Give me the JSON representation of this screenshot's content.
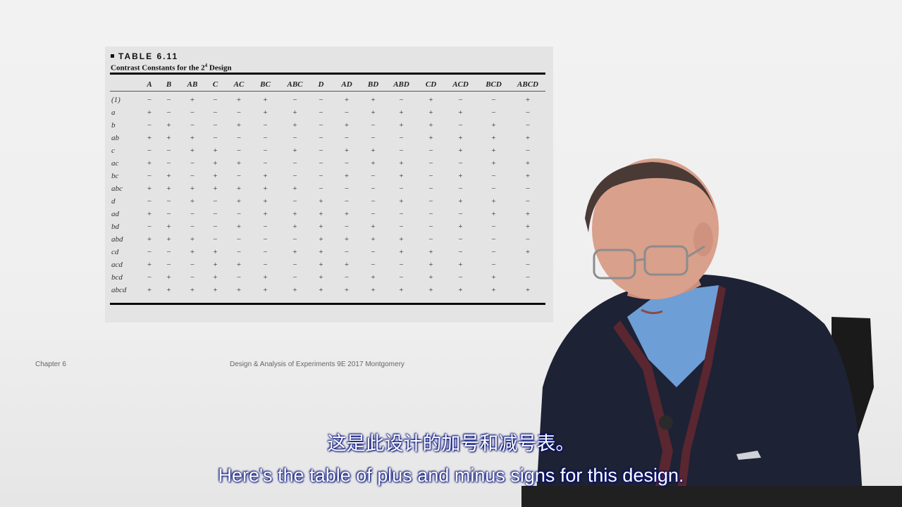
{
  "slide": {
    "table_label": "TABLE 6.11",
    "caption_prefix": "Contrast Constants for the 2",
    "caption_sup": "4",
    "caption_suffix": " Design",
    "columns": [
      "A",
      "B",
      "AB",
      "C",
      "AC",
      "BC",
      "ABC",
      "D",
      "AD",
      "BD",
      "ABD",
      "CD",
      "ACD",
      "BCD",
      "ABCD"
    ],
    "rows": [
      {
        "label": "(1)",
        "signs": [
          "−",
          "−",
          "+",
          "−",
          "+",
          "+",
          "−",
          "−",
          "+",
          "+",
          "−",
          "+",
          "−",
          "−",
          "+"
        ]
      },
      {
        "label": "a",
        "signs": [
          "+",
          "−",
          "−",
          "−",
          "−",
          "+",
          "+",
          "−",
          "−",
          "+",
          "+",
          "+",
          "+",
          "−",
          "−"
        ]
      },
      {
        "label": "b",
        "signs": [
          "−",
          "+",
          "−",
          "−",
          "+",
          "−",
          "+",
          "−",
          "+",
          "−",
          "+",
          "+",
          "−",
          "+",
          "−"
        ]
      },
      {
        "label": "ab",
        "signs": [
          "+",
          "+",
          "+",
          "−",
          "−",
          "−",
          "−",
          "−",
          "−",
          "−",
          "−",
          "+",
          "+",
          "+",
          "+"
        ]
      },
      {
        "label": "c",
        "signs": [
          "−",
          "−",
          "+",
          "+",
          "−",
          "−",
          "+",
          "−",
          "+",
          "+",
          "−",
          "−",
          "+",
          "+",
          "−"
        ]
      },
      {
        "label": "ac",
        "signs": [
          "+",
          "−",
          "−",
          "+",
          "+",
          "−",
          "−",
          "−",
          "−",
          "+",
          "+",
          "−",
          "−",
          "+",
          "+"
        ]
      },
      {
        "label": "bc",
        "signs": [
          "−",
          "+",
          "−",
          "+",
          "−",
          "+",
          "−",
          "−",
          "+",
          "−",
          "+",
          "−",
          "+",
          "−",
          "+"
        ]
      },
      {
        "label": "abc",
        "signs": [
          "+",
          "+",
          "+",
          "+",
          "+",
          "+",
          "+",
          "−",
          "−",
          "−",
          "−",
          "−",
          "−",
          "−",
          "−"
        ]
      },
      {
        "label": "d",
        "signs": [
          "−",
          "−",
          "+",
          "−",
          "+",
          "+",
          "−",
          "+",
          "−",
          "−",
          "+",
          "−",
          "+",
          "+",
          "−"
        ]
      },
      {
        "label": "ad",
        "signs": [
          "+",
          "−",
          "−",
          "−",
          "−",
          "+",
          "+",
          "+",
          "+",
          "−",
          "−",
          "−",
          "−",
          "+",
          "+"
        ]
      },
      {
        "label": "bd",
        "signs": [
          "−",
          "+",
          "−",
          "−",
          "+",
          "−",
          "+",
          "+",
          "−",
          "+",
          "−",
          "−",
          "+",
          "−",
          "+"
        ]
      },
      {
        "label": "abd",
        "signs": [
          "+",
          "+",
          "+",
          "−",
          "−",
          "−",
          "−",
          "+",
          "+",
          "+",
          "+",
          "−",
          "−",
          "−",
          "−"
        ]
      },
      {
        "label": "cd",
        "signs": [
          "−",
          "−",
          "+",
          "+",
          "−",
          "−",
          "+",
          "+",
          "−",
          "−",
          "+",
          "+",
          "−",
          "−",
          "+"
        ]
      },
      {
        "label": "acd",
        "signs": [
          "+",
          "−",
          "−",
          "+",
          "+",
          "−",
          "−",
          "+",
          "+",
          "−",
          "−",
          "+",
          "+",
          "−",
          "−"
        ]
      },
      {
        "label": "bcd",
        "signs": [
          "−",
          "+",
          "−",
          "+",
          "−",
          "+",
          "−",
          "+",
          "−",
          "+",
          "−",
          "+",
          "−",
          "+",
          "−"
        ]
      },
      {
        "label": "abcd",
        "signs": [
          "+",
          "+",
          "+",
          "+",
          "+",
          "+",
          "+",
          "+",
          "+",
          "+",
          "+",
          "+",
          "+",
          "+",
          "+"
        ]
      }
    ],
    "footer_left": "Chapter 6",
    "footer_center": "Design & Analysis of Experiments 9E 2017 Montgomery"
  },
  "subtitles": {
    "chinese": "这是此设计的加号和减号表。",
    "english": "Here's the table of plus and minus signs for this design."
  },
  "colors": {
    "shirt": "#6e9ed6",
    "cardigan": "#1d2235",
    "cardigan_trim": "#5a2630",
    "skin": "#d9a08c",
    "subtitle_glow": "#00128a"
  }
}
